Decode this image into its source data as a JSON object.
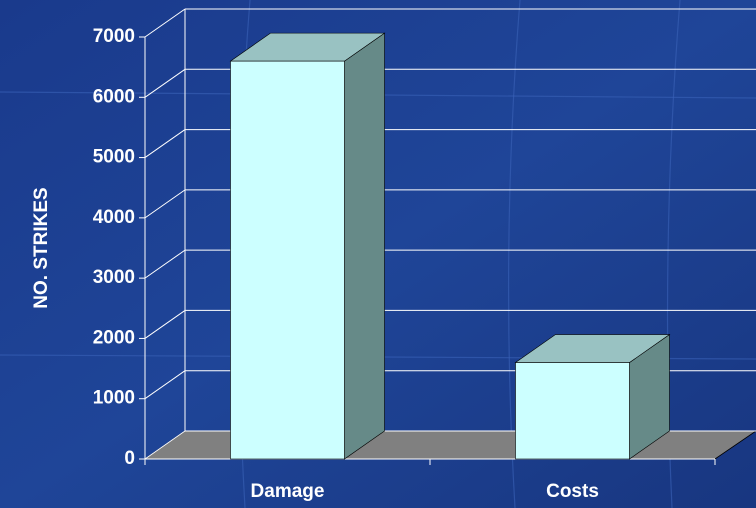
{
  "chart_data": {
    "type": "bar",
    "y_label": "NO. STRIKES",
    "categories": [
      "Damage",
      "Costs"
    ],
    "values": [
      6600,
      1600
    ],
    "color": "#ccffff",
    "ylim": [
      0,
      7000
    ],
    "yticks": [
      0,
      1000,
      2000,
      3000,
      4000,
      5000,
      6000,
      7000
    ],
    "grid": true
  }
}
